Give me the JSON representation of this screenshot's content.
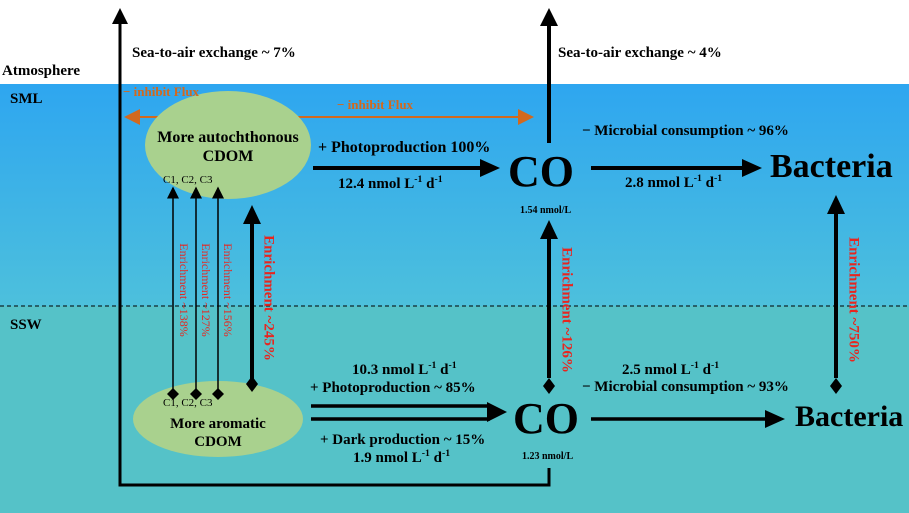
{
  "zones": {
    "atmosphere": "Atmosphere",
    "sml": "SML",
    "ssw": "SSW"
  },
  "fluxes": {
    "sea_to_air_left": "Sea-to-air exchange ~ 7%",
    "sea_to_air_right": "Sea-to-air exchange ~ 4%",
    "inhibit_left": "− inhibit Flux",
    "inhibit_mid": "− inhibit Flux"
  },
  "sml": {
    "cdom_line1": "More autochthonous",
    "cdom_line2": "CDOM",
    "c_labels": "C1, C2, C3",
    "photoproduction": "+ Photoproduction 100%",
    "photo_rate": "12.4 nmol L",
    "co": "CO",
    "co_conc": "1.54 nmol/L",
    "microbial": "− Microbial consumption ~ 96%",
    "microbial_rate": "2.8 nmol L",
    "bacteria": "Bacteria"
  },
  "ssw": {
    "cdom_line1": "More aromatic",
    "cdom_line2": "CDOM",
    "c_labels": "C1, C2, C3",
    "photo_rate": "10.3 nmol L",
    "photoproduction": "+ Photoproduction ~ 85%",
    "dark_production": "+ Dark production ~ 15%",
    "dark_rate": "1.9 nmol L",
    "co": "CO",
    "co_conc": "1.23 nmol/L",
    "microbial_rate": "2.5 nmol L",
    "microbial": "− Microbial consumption ~ 93%",
    "bacteria": "Bacteria"
  },
  "units": {
    "l_exp": "-1",
    "d": " d",
    "d_exp": "-1"
  },
  "enrichment": {
    "c1": "Enrichment ~138%",
    "c2": "Enrichment ~127%",
    "c3": "Enrichment ~156%",
    "cdom": "Enrichment ~245%",
    "co": "Enrichment ~126%",
    "bacteria": "Enrichment ~750%"
  },
  "colors": {
    "sky": "#ffffff",
    "sml_top": "#2ea6f0",
    "sml_bottom": "#4bbde0",
    "ssw": "#55c2c8",
    "ellipse": "#a9d18e",
    "inhibit": "#d2691e",
    "enrichment": "#e8251f"
  }
}
